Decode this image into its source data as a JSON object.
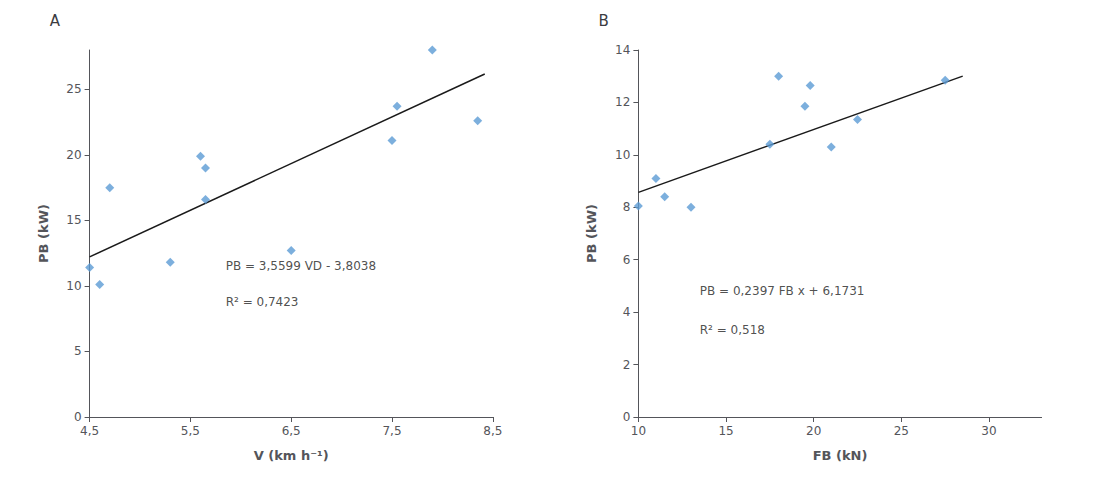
{
  "chart_data": [
    {
      "type": "scatter",
      "title": "A",
      "xlabel": "V (km h⁻¹)",
      "ylabel": "PB (kW)",
      "xlim": [
        4.5,
        8.5
      ],
      "xticks": [
        {
          "value": 4.5,
          "label": "4,5"
        },
        {
          "value": 5.5,
          "label": "5,5"
        },
        {
          "value": 6.5,
          "label": "6,5"
        },
        {
          "value": 7.5,
          "label": "7,5"
        },
        {
          "value": 8.5,
          "label": "8,5"
        }
      ],
      "ylim": [
        0,
        28
      ],
      "yticks": [
        0,
        5,
        10,
        15,
        20,
        25
      ],
      "grid": false,
      "series": [
        {
          "type": "scatter",
          "color": "#5b9bd5",
          "marker": "diamond",
          "x": [
            4.5,
            4.6,
            4.7,
            5.3,
            5.6,
            5.65,
            5.65,
            6.5,
            7.5,
            7.55,
            7.9,
            8.35
          ],
          "values": [
            11.4,
            10.1,
            17.5,
            11.8,
            19.9,
            19.0,
            16.6,
            12.7,
            21.1,
            23.7,
            28.0,
            22.6
          ]
        },
        {
          "type": "line",
          "color": "#1a1a1a",
          "line_style": "solid",
          "x": [
            4.5,
            8.42
          ],
          "values": [
            12.21575,
            26.170558
          ]
        }
      ],
      "annotations": [
        {
          "text": "PB = 3,5599 VD - 3,8038",
          "x": 5.85,
          "y": 11.5
        },
        {
          "text": "R² = 0,7423",
          "x": 5.85,
          "y": 8.8
        }
      ]
    },
    {
      "type": "scatter",
      "title": "B",
      "xlabel": "FB (kN)",
      "ylabel": "PB (kW)",
      "xlim": [
        10,
        33
      ],
      "xticks": [
        10,
        15,
        20,
        25,
        30
      ],
      "ylim": [
        0,
        14
      ],
      "yticks": [
        0,
        2,
        4,
        6,
        8,
        10,
        12,
        14
      ],
      "grid": false,
      "series": [
        {
          "type": "scatter",
          "color": "#5b9bd5",
          "marker": "diamond",
          "x": [
            10.0,
            11.0,
            11.5,
            13.0,
            17.5,
            18.0,
            19.5,
            19.8,
            21.0,
            22.5,
            27.5
          ],
          "values": [
            8.05,
            9.1,
            8.4,
            8.0,
            10.4,
            13.0,
            11.85,
            12.65,
            10.3,
            11.35,
            12.85
          ]
        },
        {
          "type": "line",
          "color": "#1a1a1a",
          "line_style": "solid",
          "x": [
            10.0,
            28.5
          ],
          "values": [
            8.5701,
            13.00455
          ]
        }
      ],
      "annotations": [
        {
          "text": "PB = 0,2397 FB x + 6,1731",
          "x": 13.5,
          "y": 4.8
        },
        {
          "text": "R² = 0,518",
          "x": 13.5,
          "y": 3.3
        }
      ]
    }
  ]
}
